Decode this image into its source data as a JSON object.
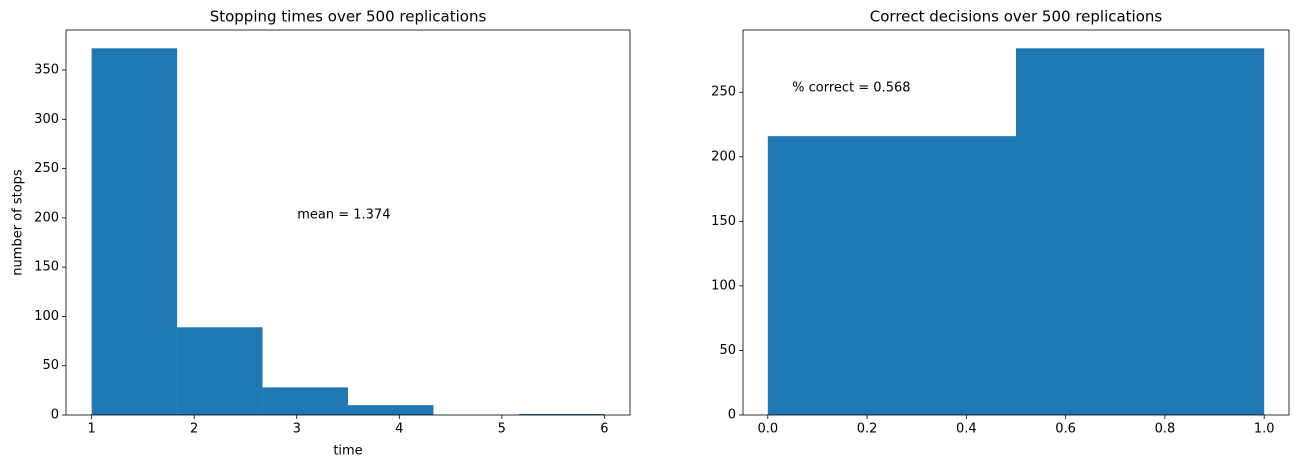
{
  "chart_data": [
    {
      "type": "histogram",
      "title": "Stopping times over 500 replications",
      "xlabel": "time",
      "ylabel": "number of stops",
      "bins": [
        1,
        1.8333333333333333,
        2.6666666666666665,
        3.5,
        4.333333333333333,
        5.166666666666667,
        6
      ],
      "values": [
        372,
        89,
        28,
        10,
        0,
        1
      ],
      "color": "#1f77b4",
      "xlim": [
        0.75,
        6.25
      ],
      "ylim": [
        0,
        390.6
      ],
      "xticks": [
        1,
        2,
        3,
        4,
        5,
        6
      ],
      "yticks": [
        0,
        50,
        100,
        150,
        200,
        250,
        300,
        350
      ],
      "annotation": "mean = 1.374"
    },
    {
      "type": "histogram",
      "title": "Correct decisions over 500 replications",
      "bins": [
        0,
        0.5,
        1
      ],
      "values": [
        216,
        284
      ],
      "color": "#1f77b4",
      "xlim": [
        -0.05,
        1.05
      ],
      "ylim": [
        0,
        298.2
      ],
      "xticks": [
        {
          "value": 0,
          "label": "0.0"
        },
        0.2,
        0.4,
        0.6,
        0.8,
        {
          "value": 1,
          "label": "1.0"
        }
      ],
      "yticks": [
        0,
        50,
        100,
        150,
        200,
        250
      ],
      "annotation": "% correct = 0.568"
    }
  ]
}
